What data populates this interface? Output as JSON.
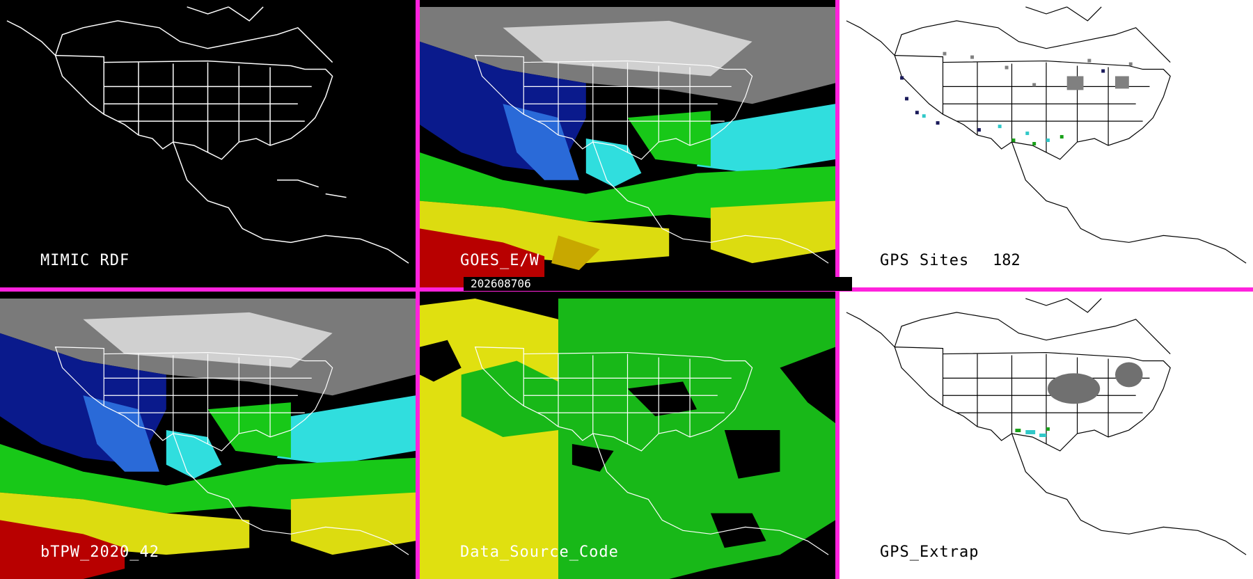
{
  "panels": {
    "mimic_rdf": {
      "label": "MIMIC RDF"
    },
    "goes": {
      "label": "GOES_E/W"
    },
    "gps_sites": {
      "label": "GPS Sites",
      "count": "182"
    },
    "btpw": {
      "label": "bTPW_2020_42"
    },
    "data_source": {
      "label": "Data_Source_Code"
    },
    "gps_extrap": {
      "label": "GPS_Extrap"
    }
  },
  "timestamp": "202608706",
  "colors": {
    "separator": "#ff22dd",
    "tpw_scale": [
      "#101010",
      "#808080",
      "#dcdcdc",
      "#0a1a8c",
      "#2a5ad8",
      "#30dede",
      "#18c818",
      "#8ce01c",
      "#dcdc10",
      "#c8a800",
      "#b80000"
    ],
    "source_yellow": "#e0e010",
    "source_green": "#18b818"
  }
}
